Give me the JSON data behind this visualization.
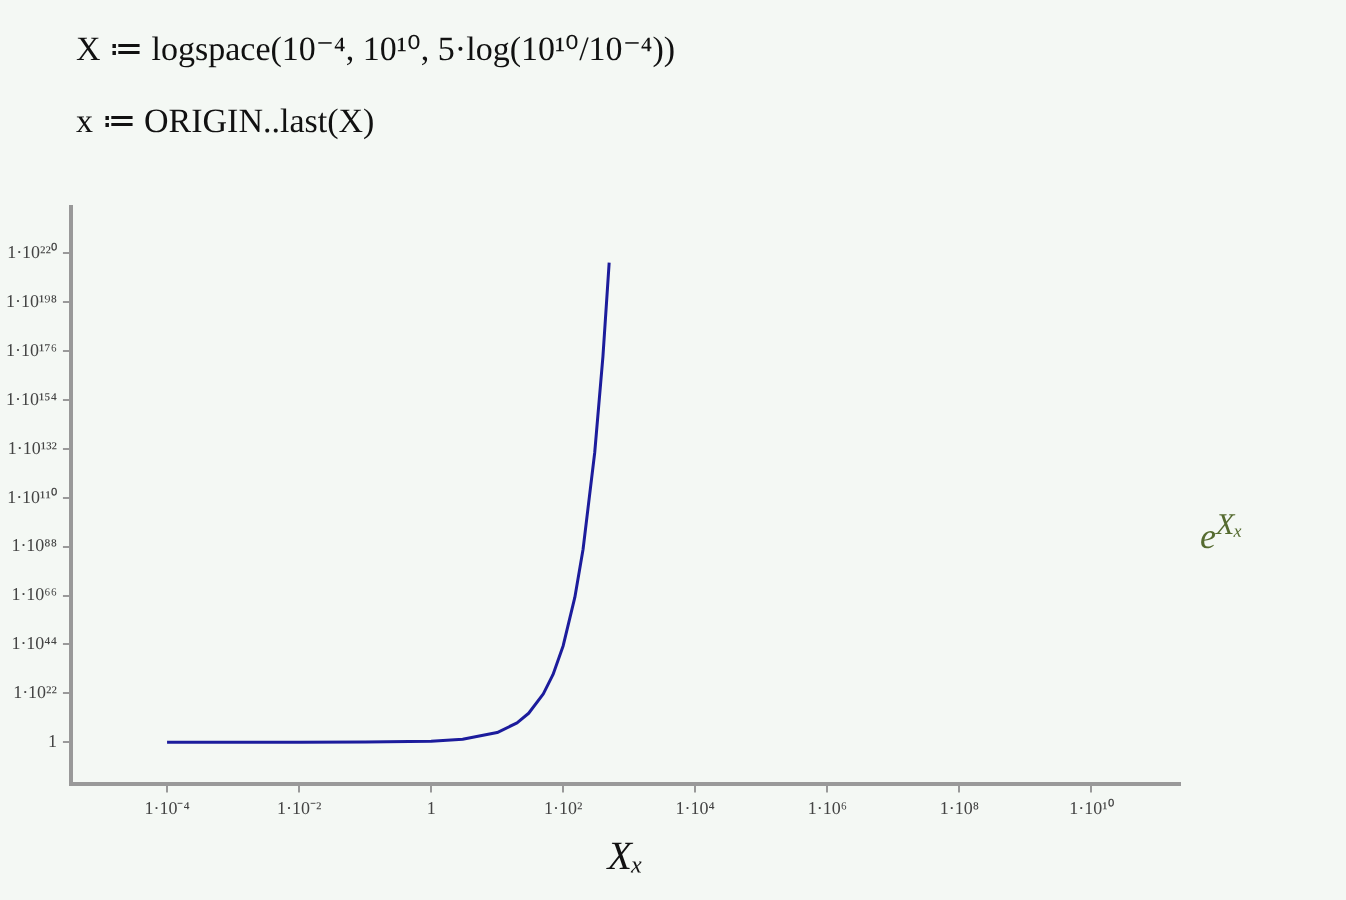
{
  "chart_data": {
    "type": "line",
    "annotations": [
      "X ≔ logspace(10⁻⁴, 10¹⁰, 5·log(10¹⁰/10⁻⁴))",
      "x ≔ ORIGIN..last(X)"
    ],
    "xlabel": "Xₓ",
    "ylabel": "e$^{Xₓ}$",
    "x": [
      0.0001,
      0.001,
      0.01,
      0.1,
      1,
      3,
      10,
      20,
      30,
      50,
      70,
      100,
      150,
      200,
      300,
      400,
      497
    ],
    "series": [
      {
        "color": "#1c1c9c",
        "values": [
          1.0001,
          1.001,
          1.01,
          1.105,
          2.718,
          20.09,
          22026,
          485000000.0,
          10700000000000.0,
          5.18e+21,
          2.52e+30,
          2.69e+43,
          1.39e+65,
          7.23e+86,
          1.94e+130,
          5.22e+173,
          6.9e+215
        ]
      }
    ],
    "log": "xy",
    "xlim": [
      3.5e-06,
      220000000000.0
    ],
    "ylim": [
      1e-19,
      1e+241
    ],
    "xticks": [
      {
        "value": 0.0001,
        "label": "1·10⁻⁴"
      },
      {
        "value": 0.01,
        "label": "1·10⁻²"
      },
      1,
      {
        "value": 100,
        "label": "1·10²"
      },
      {
        "value": 10000,
        "label": "1·10⁴"
      },
      {
        "value": 1000000.0,
        "label": "1·10⁶"
      },
      {
        "value": 100000000.0,
        "label": "1·10⁸"
      },
      {
        "value": 10000000000.0,
        "label": "1·10¹⁰"
      }
    ],
    "yticks": [
      1,
      {
        "value": 1e+22,
        "label": "1·10²²"
      },
      {
        "value": 1e+44,
        "label": "1·10⁴⁴"
      },
      {
        "value": 1e+66,
        "label": "1·10⁶⁶"
      },
      {
        "value": 1e+88,
        "label": "1·10⁸⁸"
      },
      {
        "value": 1e+110,
        "label": "1·10¹¹⁰"
      },
      {
        "value": 1e+132,
        "label": "1·10¹³²"
      },
      {
        "value": 1e+154,
        "label": "1·10¹⁵⁴"
      },
      {
        "value": 1e+176,
        "label": "1·10¹⁷⁶"
      },
      {
        "value": 1e+198,
        "label": "1·10¹⁹⁸"
      },
      {
        "value": 1e+220,
        "label": "1·10²²⁰"
      }
    ],
    "grid": false,
    "legend": false,
    "marker": "none",
    "line_style": "solid"
  }
}
